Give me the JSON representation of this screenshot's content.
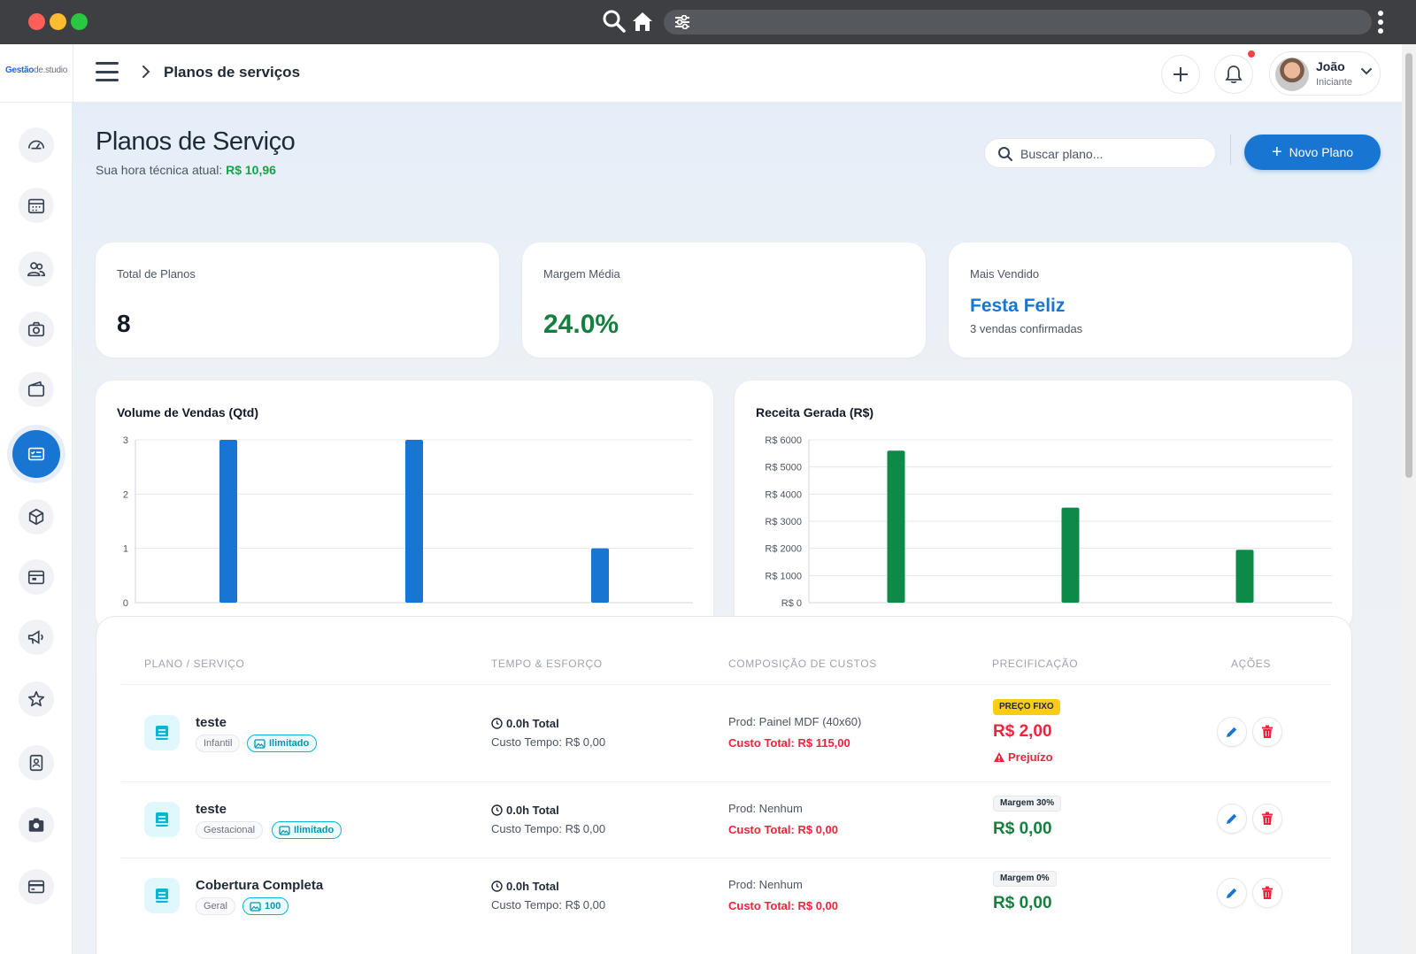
{
  "app": {
    "logo_main": "Gestão",
    "logo_sub": "de.studio",
    "breadcrumb": "Planos de serviços",
    "user": {
      "name": "João",
      "role": "Iniciante"
    }
  },
  "sidebar": {
    "items": [
      {
        "icon": "dashboard-icon"
      },
      {
        "icon": "calendar-icon"
      },
      {
        "icon": "clients-icon"
      },
      {
        "icon": "camera-icon"
      },
      {
        "icon": "wallet-icon"
      },
      {
        "icon": "service-plans-icon",
        "active": true
      },
      {
        "icon": "box-icon"
      },
      {
        "icon": "schedule-icon"
      },
      {
        "icon": "megaphone-icon"
      },
      {
        "icon": "star-icon"
      },
      {
        "icon": "profile-card-icon"
      },
      {
        "icon": "camera-filled-icon"
      },
      {
        "icon": "credit-card-icon"
      }
    ]
  },
  "page": {
    "title": "Planos de Serviço",
    "subtitle_label": "Sua hora técnica atual:",
    "subtitle_value": "R$ 10,96",
    "search_placeholder": "Buscar plano...",
    "new_button": "Novo Plano"
  },
  "kpis": {
    "total": {
      "label": "Total de Planos",
      "value": "8"
    },
    "margin": {
      "label": "Margem Média",
      "value": "24.0%"
    },
    "best": {
      "label": "Mais Vendido",
      "value": "Festa Feliz",
      "note": "3 vendas confirmadas"
    }
  },
  "chart_data": [
    {
      "type": "bar",
      "title": "Volume de Vendas (Qtd)",
      "values": [
        3,
        3,
        1
      ],
      "ylim": [
        0,
        3
      ],
      "yticks": [
        "0",
        "1",
        "2",
        "3"
      ],
      "grid": true,
      "color": "#1876d2"
    },
    {
      "type": "bar",
      "title": "Receita Gerada (R$)",
      "values": [
        5600,
        3500,
        1950
      ],
      "ylim": [
        0,
        6000
      ],
      "yticks": [
        "R$ 0",
        "R$ 1000",
        "R$ 2000",
        "R$ 3000",
        "R$ 4000",
        "R$ 5000",
        "R$ 6000"
      ],
      "grid": true,
      "color": "#0e8a48"
    }
  ],
  "table": {
    "headers": {
      "plan": "PLANO / SERVIÇO",
      "time": "TEMPO & ESFORÇO",
      "costs": "COMPOSIÇÃO DE CUSTOS",
      "pricing": "PRECIFICAÇÃO",
      "actions": "AÇÕES"
    },
    "rows": [
      {
        "name": "teste",
        "category": "Infantil",
        "limit": "Ilimitado",
        "time_total": "0.0h Total",
        "time_cost": "Custo Tempo: R$ 0,00",
        "product": "Prod: Painel MDF (40x60)",
        "cost_total": "Custo Total: R$ 115,00",
        "badge": "PREÇO FIXO",
        "price": "R$ 2,00",
        "status": "Prejuízo"
      },
      {
        "name": "teste",
        "category": "Gestacional",
        "limit": "Ilimitado",
        "time_total": "0.0h Total",
        "time_cost": "Custo Tempo: R$ 0,00",
        "product": "Prod: Nenhum",
        "cost_total": "Custo Total: R$ 0,00",
        "badge": "Margem 30%",
        "price": "R$ 0,00"
      },
      {
        "name": "Cobertura Completa",
        "category": "Geral",
        "limit": "100",
        "time_total": "0.0h Total",
        "time_cost": "Custo Tempo: R$ 0,00",
        "product": "Prod: Nenhum",
        "cost_total": "Custo Total: R$ 0,00",
        "badge": "Margem 0%",
        "price": "R$ 0,00"
      }
    ]
  }
}
